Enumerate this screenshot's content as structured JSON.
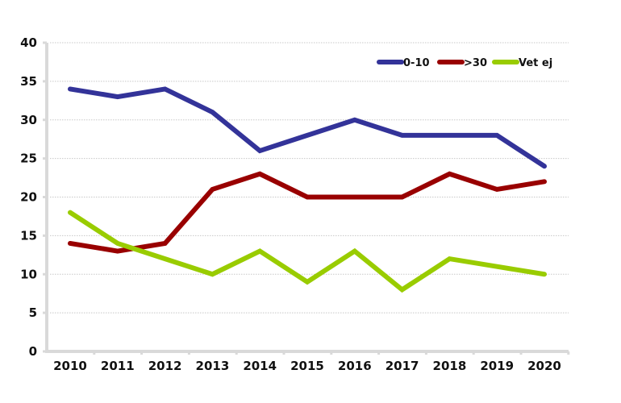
{
  "chart_data": {
    "type": "line",
    "title": "",
    "xlabel": "",
    "ylabel": "",
    "x": [
      "2010",
      "2011",
      "2012",
      "2013",
      "2014",
      "2015",
      "2016",
      "2017",
      "2018",
      "2019",
      "2020"
    ],
    "ylim": [
      0,
      40
    ],
    "yticks": [
      "0",
      "5",
      "10",
      "15",
      "20",
      "25",
      "30",
      "35",
      "40"
    ],
    "ytick_values": [
      0,
      5,
      10,
      15,
      20,
      25,
      30,
      35,
      40
    ],
    "grid": true,
    "legend_position": "top-right",
    "series": [
      {
        "name": "0-10",
        "color": "#333399",
        "values": [
          34,
          33,
          34,
          31,
          26,
          28,
          30,
          28,
          28,
          28,
          24
        ]
      },
      {
        "name": ">30",
        "color": "#990000",
        "values": [
          14,
          13,
          14,
          21,
          23,
          20,
          20,
          20,
          23,
          21,
          22
        ]
      },
      {
        "name": "Vet ej",
        "color": "#99cc00",
        "values": [
          18,
          14,
          12,
          10,
          13,
          9,
          13,
          8,
          12,
          11,
          10
        ]
      }
    ]
  }
}
